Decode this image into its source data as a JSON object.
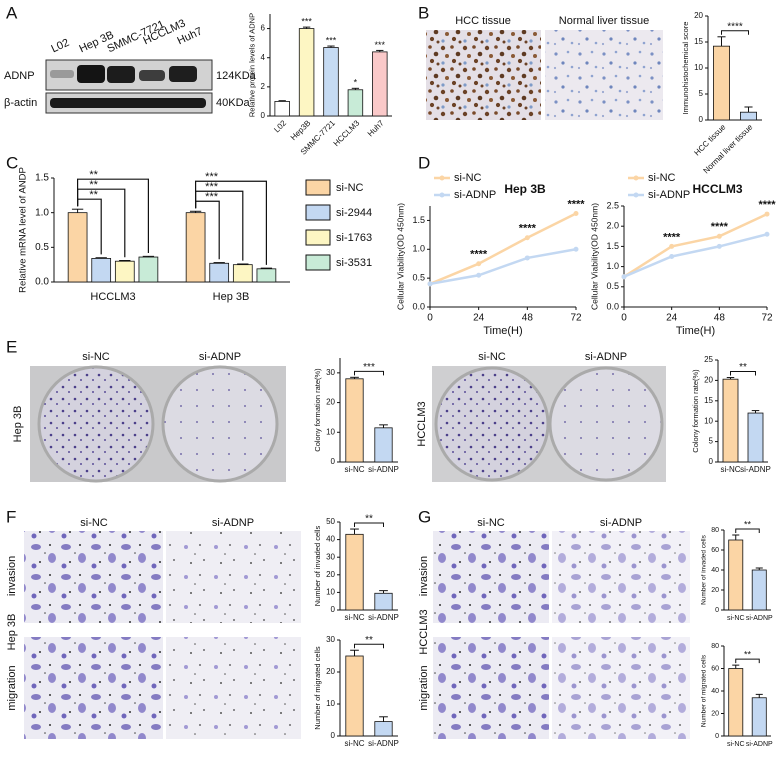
{
  "panel_labels": [
    "A",
    "B",
    "C",
    "D",
    "E",
    "F",
    "G"
  ],
  "blot": {
    "lanes": [
      "L02",
      "Hep 3B",
      "SMMC-7721",
      "HCCLM3",
      "Huh7"
    ],
    "rows": [
      "ADNP",
      "β-actin"
    ],
    "sizes": [
      "124KDa",
      "40KDa"
    ]
  },
  "ihc": {
    "labels": [
      "HCC tissue",
      "Normal liver tissue"
    ]
  },
  "colony": {
    "conditions": [
      "si-NC",
      "si-ADNP"
    ],
    "rows": [
      "Hep 3B",
      "HCCLM3"
    ]
  },
  "transwell": {
    "conditions": [
      "si-NC",
      "si-ADNP"
    ],
    "assays": [
      "invasion",
      "migration"
    ],
    "cells": [
      "Hep 3B",
      "HCCLM3"
    ]
  },
  "chart_data": [
    {
      "type": "bar",
      "ylabel": "Relative protein levels of ADNP",
      "categories": [
        "L02",
        "Hep3B",
        "SMMC-7721",
        "HCCLM3",
        "Huh7"
      ],
      "values": [
        1.0,
        6.0,
        4.7,
        1.8,
        4.4
      ],
      "errors": [
        0.05,
        0.1,
        0.1,
        0.1,
        0.1
      ],
      "colors": [
        "#ffffff",
        "#fdf6c3",
        "#c6dbf3",
        "#c8ebd7",
        "#fac9c9"
      ],
      "significance": [
        null,
        "***",
        "***",
        "*",
        "***"
      ],
      "ylim": [
        0,
        7
      ],
      "yticks": [
        0,
        2,
        4,
        6
      ]
    },
    {
      "type": "bar",
      "ylabel": "Immunohistochemical score",
      "categories": [
        "HCC tissue",
        "Normal liver tissue"
      ],
      "values": [
        14.2,
        1.5
      ],
      "errors": [
        1.8,
        1.0
      ],
      "colors": [
        "#fbd5a5",
        "#c3d8f2"
      ],
      "significance": "****",
      "ylim": [
        0,
        20
      ],
      "yticks": [
        0,
        5,
        10,
        15,
        20
      ]
    },
    {
      "type": "grouped_bar",
      "ylabel": "Relative mRNA level of ANDP",
      "categories": [
        "HCCLM3",
        "Hep 3B"
      ],
      "series": [
        {
          "name": "si-NC",
          "color": "#fbd5a5",
          "values": [
            1.0,
            1.0
          ],
          "errors": [
            0.05,
            0.02
          ]
        },
        {
          "name": "si-2944",
          "color": "#c3d8f2",
          "values": [
            0.34,
            0.27
          ],
          "errors": [
            0.01,
            0.01
          ]
        },
        {
          "name": "si-1763",
          "color": "#fdf6c3",
          "values": [
            0.3,
            0.25
          ],
          "errors": [
            0.01,
            0.01
          ]
        },
        {
          "name": "si-3531",
          "color": "#c8ebd7",
          "values": [
            0.36,
            0.19
          ],
          "errors": [
            0.01,
            0.01
          ]
        }
      ],
      "significance": [
        [
          "**",
          "**",
          "**"
        ],
        [
          "***",
          "***",
          "***"
        ]
      ],
      "ylim": [
        0,
        1.5
      ],
      "yticks": [
        {
          "value": 0,
          "label": "0.0"
        },
        0.5,
        {
          "value": 1,
          "label": "1.0"
        },
        1.5
      ]
    },
    {
      "type": "line",
      "title": "Hep 3B",
      "xlabel": "Time(H)",
      "ylabel": "Cellular Viability(OD 450nm)",
      "x": [
        0,
        24,
        48,
        72
      ],
      "series": [
        {
          "name": "si-NC",
          "color": "#fbd5a5",
          "values": [
            0.4,
            0.75,
            1.2,
            1.62
          ]
        },
        {
          "name": "si-ADNP",
          "color": "#c3d8f2",
          "values": [
            0.4,
            0.55,
            0.85,
            1.0
          ]
        }
      ],
      "significance": [
        null,
        "****",
        "****",
        "****"
      ],
      "xlim": [
        0,
        72
      ],
      "xticks": [
        0,
        24,
        48,
        72
      ],
      "ylim": [
        0,
        1.75
      ],
      "yticks": [
        {
          "value": 0,
          "label": "0.0"
        },
        0.5,
        {
          "value": 1,
          "label": "1.0"
        },
        1.5
      ]
    },
    {
      "type": "line",
      "title": "HCCLM3",
      "xlabel": "Time(H)",
      "ylabel": "Cellular Viability(OD 450nm)",
      "x": [
        0,
        24,
        48,
        72
      ],
      "series": [
        {
          "name": "si-NC",
          "color": "#fbd5a5",
          "values": [
            0.75,
            1.5,
            1.75,
            2.3
          ]
        },
        {
          "name": "si-ADNP",
          "color": "#c3d8f2",
          "values": [
            0.75,
            1.25,
            1.5,
            1.8
          ]
        }
      ],
      "significance": [
        null,
        "****",
        "****",
        "****"
      ],
      "xlim": [
        0,
        72
      ],
      "xticks": [
        0,
        24,
        48,
        72
      ],
      "ylim": [
        0,
        2.5
      ],
      "yticks": [
        {
          "value": 0,
          "label": "0.0"
        },
        0.5,
        {
          "value": 1,
          "label": "1.0"
        },
        1.5,
        {
          "value": 2,
          "label": "2.0"
        },
        2.5
      ]
    },
    {
      "type": "bar",
      "ylabel": "Colony formation rate(%)",
      "categories": [
        "si-NC",
        "si-ADNP"
      ],
      "values": [
        28,
        11.5
      ],
      "errors": [
        0.5,
        1.0
      ],
      "colors": [
        "#fbd5a5",
        "#c3d8f2"
      ],
      "significance": "***",
      "ylim": [
        0,
        35
      ],
      "yticks": [
        0,
        10,
        20,
        30
      ]
    },
    {
      "type": "bar",
      "ylabel": "Colony formation rate(%)",
      "categories": [
        "si-NC",
        "si-ADNP"
      ],
      "values": [
        20.3,
        12
      ],
      "errors": [
        0.4,
        0.6
      ],
      "colors": [
        "#fbd5a5",
        "#c3d8f2"
      ],
      "significance": "**",
      "ylim": [
        0,
        25
      ],
      "yticks": [
        0,
        5,
        10,
        15,
        20,
        25
      ]
    },
    {
      "type": "bar",
      "ylabel": "Number of invaded cells",
      "categories": [
        "si-NC",
        "si-ADNP"
      ],
      "values": [
        43,
        9.5
      ],
      "errors": [
        3,
        1.5
      ],
      "colors": [
        "#fbd5a5",
        "#c3d8f2"
      ],
      "significance": "**",
      "ylim": [
        0,
        50
      ],
      "yticks": [
        0,
        10,
        20,
        30,
        40,
        50
      ]
    },
    {
      "type": "bar",
      "ylabel": "Number of migrated cells",
      "categories": [
        "si-NC",
        "si-ADNP"
      ],
      "values": [
        25,
        4.5
      ],
      "errors": [
        1.8,
        1.5
      ],
      "colors": [
        "#fbd5a5",
        "#c3d8f2"
      ],
      "significance": "**",
      "ylim": [
        0,
        30
      ],
      "yticks": [
        0,
        10,
        20,
        30
      ]
    },
    {
      "type": "bar",
      "ylabel": "Number of invaded cells",
      "categories": [
        "si-NC",
        "si-ADNP"
      ],
      "values": [
        70,
        40
      ],
      "errors": [
        5,
        2
      ],
      "colors": [
        "#fbd5a5",
        "#c3d8f2"
      ],
      "significance": "**",
      "ylim": [
        0,
        80
      ],
      "yticks": [
        0,
        20,
        40,
        60,
        80
      ]
    },
    {
      "type": "bar",
      "ylabel": "Number of migrated cells",
      "categories": [
        "si-NC",
        "si-ADNP"
      ],
      "values": [
        60,
        34
      ],
      "errors": [
        3,
        3
      ],
      "colors": [
        "#fbd5a5",
        "#c3d8f2"
      ],
      "significance": "**",
      "ylim": [
        0,
        80
      ],
      "yticks": [
        0,
        20,
        40,
        60,
        80
      ]
    }
  ]
}
